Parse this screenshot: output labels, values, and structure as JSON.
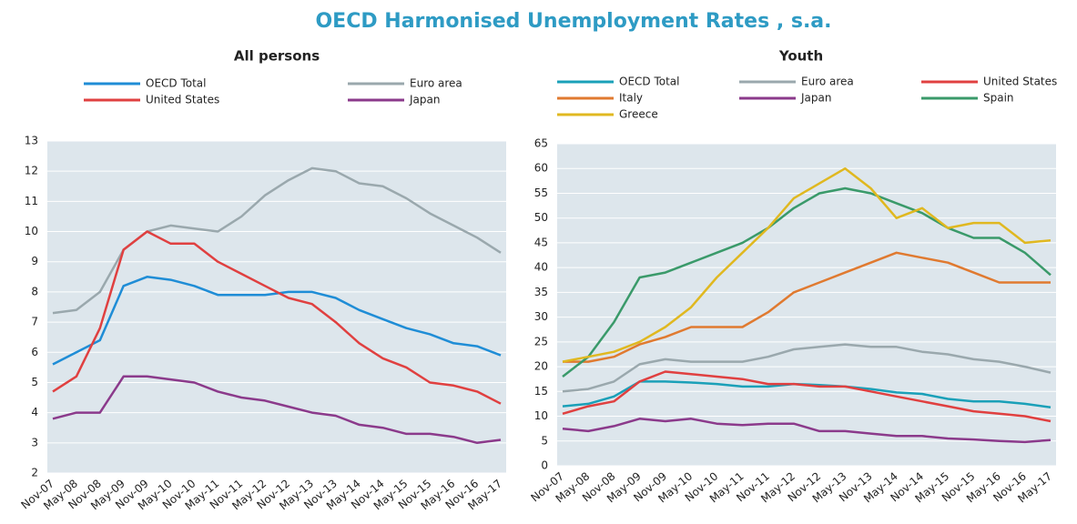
{
  "title": "OECD Harmonised Unemployment Rates , s.a.",
  "chart_data": [
    {
      "type": "line",
      "title": "All persons",
      "categories": [
        "Nov-07",
        "May-08",
        "Nov-08",
        "May-09",
        "Nov-09",
        "May-10",
        "Nov-10",
        "May-11",
        "Nov-11",
        "May-12",
        "Nov-12",
        "May-13",
        "Nov-13",
        "May-14",
        "Nov-14",
        "May-15",
        "Nov-15",
        "May-16",
        "Nov-16",
        "May-17"
      ],
      "ylim": [
        2,
        13
      ],
      "yticks": [
        2,
        3,
        4,
        5,
        6,
        7,
        8,
        9,
        10,
        11,
        12,
        13
      ],
      "grid": true,
      "series": [
        {
          "name": "OECD Total",
          "color": "#1f8dd6",
          "values": [
            5.6,
            6.0,
            6.4,
            8.2,
            8.5,
            8.4,
            8.2,
            7.9,
            7.9,
            7.9,
            8.0,
            8.0,
            7.8,
            7.4,
            7.1,
            6.8,
            6.6,
            6.3,
            6.2,
            5.9
          ]
        },
        {
          "name": "Euro area",
          "color": "#9aa8ad",
          "values": [
            7.3,
            7.4,
            8.0,
            9.4,
            10.0,
            10.2,
            10.1,
            10.0,
            10.5,
            11.2,
            11.7,
            12.1,
            12.0,
            11.6,
            11.5,
            11.1,
            10.6,
            10.2,
            9.8,
            9.3
          ]
        },
        {
          "name": "United States",
          "color": "#e04040",
          "values": [
            4.7,
            5.2,
            6.8,
            9.4,
            10.0,
            9.6,
            9.6,
            9.0,
            8.6,
            8.2,
            7.8,
            7.6,
            7.0,
            6.3,
            5.8,
            5.5,
            5.0,
            4.9,
            4.7,
            4.3
          ]
        },
        {
          "name": "Japan",
          "color": "#8b3a8b",
          "values": [
            3.8,
            4.0,
            4.0,
            5.2,
            5.2,
            5.1,
            5.0,
            4.7,
            4.5,
            4.4,
            4.2,
            4.0,
            3.9,
            3.6,
            3.5,
            3.3,
            3.3,
            3.2,
            3.0,
            3.1
          ]
        }
      ]
    },
    {
      "type": "line",
      "title": "Youth",
      "categories": [
        "Nov-07",
        "May-08",
        "Nov-08",
        "May-09",
        "Nov-09",
        "May-10",
        "Nov-10",
        "May-11",
        "Nov-11",
        "May-12",
        "Nov-12",
        "May-13",
        "Nov-13",
        "May-14",
        "Nov-14",
        "May-15",
        "Nov-15",
        "May-16",
        "Nov-16",
        "May-17"
      ],
      "ylim": [
        0,
        65
      ],
      "yticks": [
        0,
        5,
        10,
        15,
        20,
        25,
        30,
        35,
        40,
        45,
        50,
        55,
        60,
        65
      ],
      "grid": true,
      "series": [
        {
          "name": "OECD Total",
          "color": "#1aa0b8",
          "values": [
            12,
            12.5,
            14,
            17,
            17,
            16.8,
            16.5,
            16,
            16,
            16.5,
            16.3,
            16,
            15.5,
            14.8,
            14.5,
            13.5,
            13,
            13,
            12.5,
            11.8
          ]
        },
        {
          "name": "Euro area",
          "color": "#9aa8ad",
          "values": [
            15,
            15.5,
            17,
            20.5,
            21.5,
            21,
            21,
            21,
            22,
            23.5,
            24,
            24.5,
            24,
            24,
            23,
            22.5,
            21.5,
            21,
            20,
            18.8
          ]
        },
        {
          "name": "United States",
          "color": "#e04040",
          "values": [
            10.5,
            12,
            13,
            17,
            19,
            18.5,
            18,
            17.5,
            16.5,
            16.5,
            16,
            16,
            15,
            14,
            13,
            12,
            11,
            10.5,
            10,
            9
          ]
        },
        {
          "name": "Italy",
          "color": "#e07a30",
          "values": [
            21,
            21,
            22,
            24.5,
            26,
            28,
            28,
            28,
            31,
            35,
            37,
            39,
            41,
            43,
            42,
            41,
            39,
            37,
            37,
            37
          ]
        },
        {
          "name": "Japan",
          "color": "#8b3a8b",
          "values": [
            7.5,
            7,
            8,
            9.5,
            9,
            9.5,
            8.5,
            8.2,
            8.5,
            8.5,
            7,
            7,
            6.5,
            6,
            6,
            5.5,
            5.3,
            5,
            4.8,
            5.2
          ]
        },
        {
          "name": "Spain",
          "color": "#3a9a6a",
          "values": [
            18,
            22,
            29,
            38,
            39,
            41,
            43,
            45,
            48,
            52,
            55,
            56,
            55,
            53,
            51,
            48,
            46,
            46,
            43,
            38.5
          ]
        },
        {
          "name": "Greece",
          "color": "#e0b820",
          "values": [
            21,
            22,
            23,
            25,
            28,
            32,
            38,
            43,
            48,
            54,
            57,
            60,
            56,
            50,
            52,
            48,
            49,
            49,
            45,
            45.5
          ]
        }
      ]
    }
  ]
}
